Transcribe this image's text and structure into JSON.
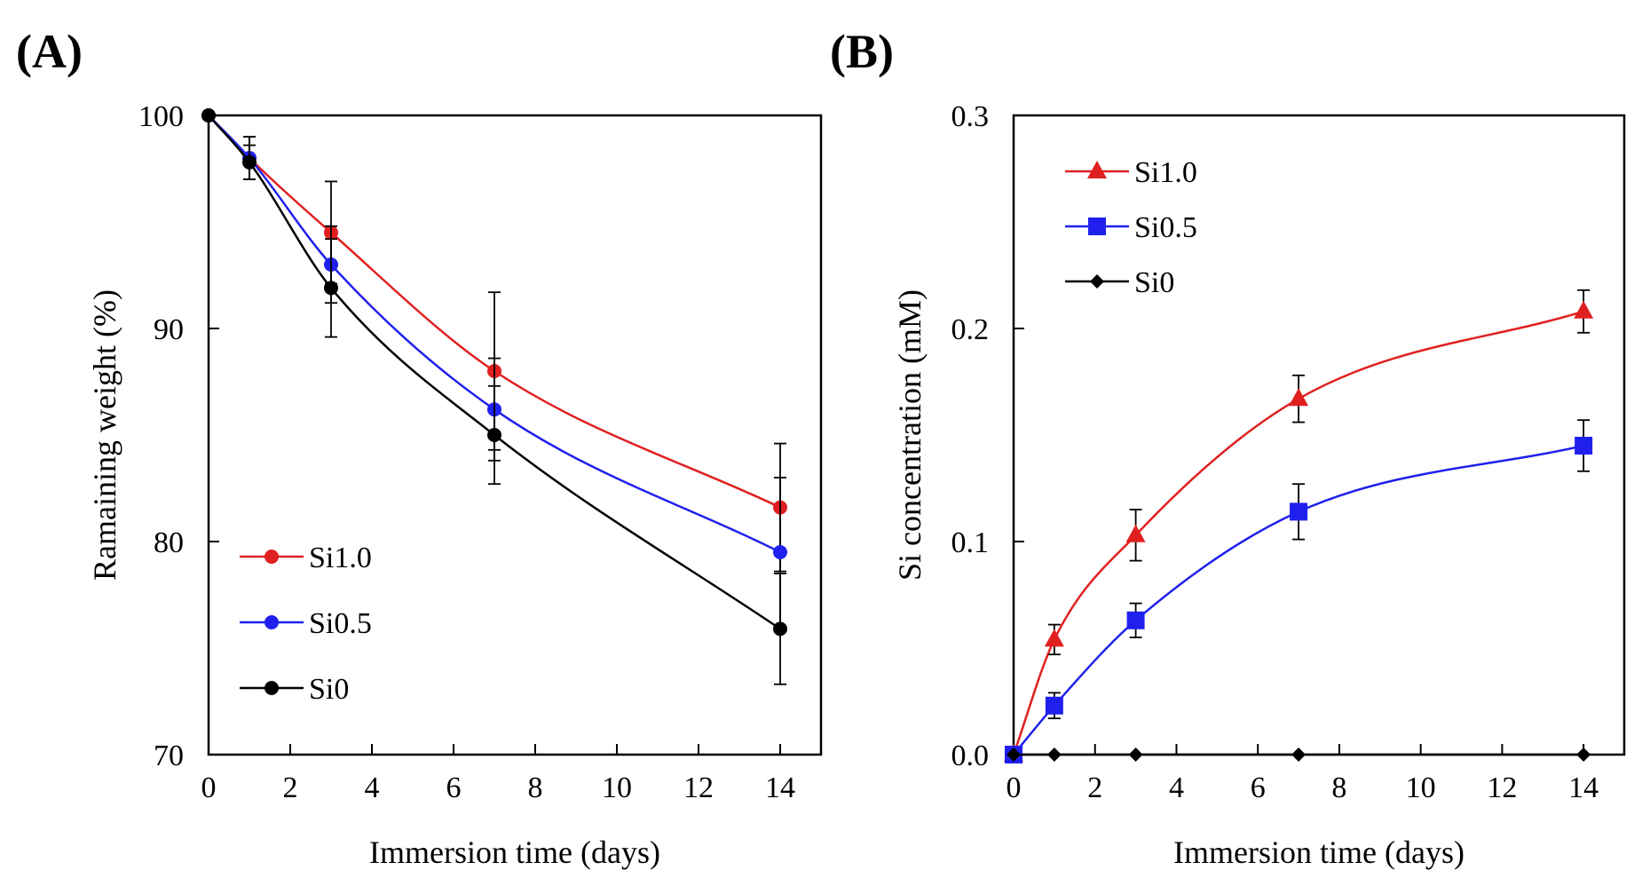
{
  "panels": [
    {
      "label": "(A)"
    },
    {
      "label": "(B)"
    }
  ],
  "chart_data": [
    {
      "type": "line",
      "xlabel": "Immersion time (days)",
      "ylabel": "Ramaining weight (%)",
      "xlim": [
        0,
        15
      ],
      "ylim": [
        70,
        100
      ],
      "xticks": [
        0,
        2,
        4,
        6,
        8,
        10,
        12,
        14
      ],
      "yticks": [
        70,
        80,
        90,
        100
      ],
      "x": [
        0,
        1,
        3,
        7,
        14
      ],
      "legend_position": "bottom-left",
      "grid": false,
      "series": [
        {
          "name": "Si1.0",
          "color": "#e02020",
          "marker": "circle",
          "values": [
            100,
            98.0,
            94.5,
            88.0,
            81.6
          ],
          "errors": [
            0,
            1.0,
            2.4,
            3.7,
            3.0
          ]
        },
        {
          "name": "Si0.5",
          "color": "#2020ee",
          "marker": "circle",
          "values": [
            100,
            98.0,
            93.0,
            86.2,
            79.5
          ],
          "errors": [
            0,
            1.0,
            1.8,
            2.4,
            3.5
          ]
        },
        {
          "name": "Si0",
          "color": "#000000",
          "marker": "circle",
          "values": [
            100,
            97.8,
            91.9,
            85.0,
            75.9
          ],
          "errors": [
            0,
            0.8,
            2.3,
            2.3,
            2.6
          ]
        }
      ]
    },
    {
      "type": "line",
      "xlabel": "Immersion time (days)",
      "ylabel": "Si concentration (mM)",
      "xlim": [
        0,
        15
      ],
      "ylim": [
        0,
        0.3
      ],
      "xticks": [
        0,
        2,
        4,
        6,
        8,
        10,
        12,
        14
      ],
      "yticks": [
        0.0,
        0.1,
        0.2,
        0.3
      ],
      "ytick_labels": [
        "0.0",
        "0.1",
        "0.2",
        "0.3"
      ],
      "x": [
        0,
        1,
        3,
        7,
        14
      ],
      "legend_position": "top-left",
      "grid": false,
      "series": [
        {
          "name": "Si1.0",
          "color": "#e02020",
          "marker": "triangle",
          "values": [
            0,
            0.054,
            0.103,
            0.167,
            0.208
          ],
          "errors": [
            0,
            0.007,
            0.012,
            0.011,
            0.01
          ]
        },
        {
          "name": "Si0.5",
          "color": "#2020ee",
          "marker": "square",
          "values": [
            0,
            0.023,
            0.063,
            0.114,
            0.145
          ],
          "errors": [
            0,
            0.006,
            0.008,
            0.013,
            0.012
          ]
        },
        {
          "name": "Si0",
          "color": "#000000",
          "marker": "diamond",
          "values": [
            0,
            0,
            0,
            0,
            0
          ],
          "errors": [
            0,
            0,
            0,
            0,
            0
          ]
        }
      ]
    }
  ]
}
